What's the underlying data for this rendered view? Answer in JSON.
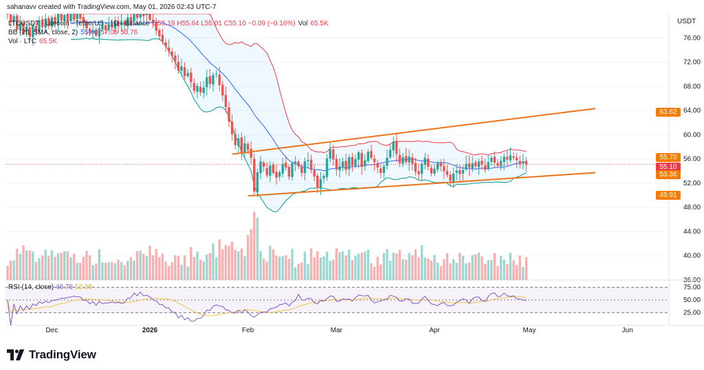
{
  "caption": "sahanavv created with TradingView.com, May 01, 2026 02:43 UTC-7",
  "legend": {
    "symbol_line": "LTCUSDT · Litecoin · TetherUS · 1D · Binance",
    "ohlc": "O55.19 H55.64 L55.01 C55.10 −0.09 (−0.16%)",
    "volume_label": "Vol",
    "volume_value": "65.5K",
    "bb_label": "BB (20, SMA, close, 2)",
    "bb_basis": "55.40",
    "bb_upper": "57.05",
    "bb_lower": "53.76",
    "vol_label": "Vol · LTC",
    "vol_value": "65.5K"
  },
  "rsi_legend": {
    "label": "RSI (14, close)",
    "rsi_value": "48.78",
    "ma_value": "52.38"
  },
  "axis": {
    "currency": "USDT",
    "price_ticks": [
      "76.00",
      "72.00",
      "68.00",
      "64.00",
      "60.00",
      "56.00",
      "52.00",
      "48.00",
      "44.00",
      "40.00",
      "36.00"
    ],
    "rsi_ticks": [
      "75.00",
      "50.00",
      "25.00"
    ],
    "time_labels": [
      "Dec",
      "2026",
      "Feb",
      "Mar",
      "Apr",
      "May",
      "Jun"
    ]
  },
  "price_tags": [
    {
      "text": "63.62",
      "color": "#f57c00"
    },
    {
      "text": "55.70",
      "color": "#f57c00"
    },
    {
      "text": "55.10",
      "color": "#f23645"
    },
    {
      "text": "53.36",
      "color": "#f57c00"
    },
    {
      "text": "49.91",
      "color": "#f57c00"
    }
  ],
  "logo_text": "TradingView",
  "colors": {
    "up": "#26a69a",
    "down": "#ef5350",
    "bb_basis": "#2962ff",
    "bb_upper": "#f23645",
    "bb_lower": "#089981",
    "trendline": "#e8731a",
    "rsi": "#7e57c2",
    "rsi_ma": "#f5c242"
  },
  "chart_data": {
    "type": "candlestick",
    "symbol": "LTCUSDT",
    "interval": "1D",
    "ylim": [
      36,
      80
    ],
    "rsi_ylim": [
      0,
      100
    ],
    "months": [
      {
        "label": "Dec",
        "index": 14
      },
      {
        "label": "2026",
        "index": 45
      },
      {
        "label": "Feb",
        "index": 76
      },
      {
        "label": "Mar",
        "index": 104
      },
      {
        "label": "Apr",
        "index": 135
      },
      {
        "label": "May",
        "index": 165
      },
      {
        "label": "Jun",
        "index": 196
      }
    ],
    "closes": [
      80.0,
      78.5,
      79.6,
      77.4,
      78.6,
      76.8,
      77.9,
      76.2,
      78.1,
      77.0,
      78.9,
      77.8,
      79.2,
      78.0,
      79.4,
      78.3,
      80.0,
      78.9,
      79.8,
      78.7,
      80.1,
      79.0,
      80.3,
      79.2,
      78.6,
      77.6,
      76.8,
      77.2,
      76.4,
      77.6,
      78.1,
      77.4,
      78.3,
      77.7,
      78.7,
      77.9,
      78.8,
      78.1,
      79.4,
      78.6,
      80.1,
      79.3,
      80.4,
      79.6,
      80.5,
      79.0,
      78.4,
      77.2,
      76.3,
      75.4,
      74.6,
      73.8,
      73.0,
      72.1,
      70.6,
      71.3,
      69.7,
      70.2,
      68.7,
      67.3,
      68.1,
      67.0,
      67.8,
      69.5,
      68.4,
      69.9,
      70.1,
      68.2,
      66.5,
      64.6,
      62.2,
      60.1,
      58.3,
      59.4,
      57.1,
      58.6,
      57.5,
      56.2,
      50.6,
      53.8,
      55.6,
      54.7,
      53.3,
      54.9,
      53.7,
      52.9,
      53.8,
      55.2,
      54.6,
      53.1,
      55.3,
      55.6,
      54.8,
      53.7,
      55.6,
      55.8,
      54.2,
      53.1,
      51.2,
      52.7,
      53.2,
      56.1,
      57.6,
      55.9,
      54.3,
      54.8,
      55.6,
      54.2,
      56.3,
      54.9,
      56.0,
      57.1,
      54.7,
      55.8,
      57.2,
      56.2,
      55.5,
      54.6,
      53.7,
      54.8,
      56.2,
      57.5,
      58.9,
      56.8,
      55.3,
      56.3,
      55.5,
      56.4,
      55.2,
      53.9,
      53.5,
      55.2,
      56.2,
      54.7,
      53.6,
      54.4,
      55.3,
      54.8,
      54.0,
      53.4,
      52.4,
      53.6,
      54.1,
      53.5,
      54.2,
      55.2,
      54.6,
      55.3,
      54.8,
      55.6,
      55.1,
      54.2,
      55.5,
      56.2,
      55.4,
      54.9,
      55.7,
      56.4,
      55.9,
      56.6,
      56.2,
      55.8,
      55.2,
      55.6,
      55.1
    ],
    "support_line": {
      "from": [
        76,
        49.91
      ],
      "to": [
        175,
        53.36
      ]
    },
    "resistance_line": {
      "from": [
        71,
        56.8
      ],
      "to": [
        175,
        63.62
      ]
    },
    "rsi_levels": [
      75,
      50,
      25
    ],
    "rsi_last": 48.78,
    "rsi_ma_last": 52.38
  }
}
